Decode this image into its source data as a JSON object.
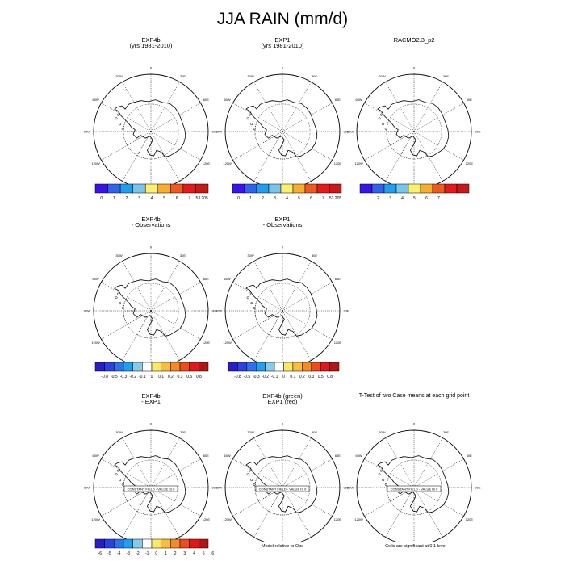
{
  "title": "JJA RAIN (mm/d)",
  "map_labels": {
    "lon_0": "0",
    "lon_30w": "30W",
    "lon_30e": "30E",
    "lon_60w": "60W",
    "lon_60e": "60E",
    "lon_90w": "90W",
    "lon_90e": "90E",
    "lon_120w": "120W",
    "lon_120e": "120E",
    "lon_150w": "150W",
    "lon_150e": "150E",
    "lon_180": "180"
  },
  "panels": [
    {
      "id": "p1",
      "title": [
        "EXP4b",
        "(yrs 1981-2010)"
      ],
      "constant": ""
    },
    {
      "id": "p2",
      "title": [
        "EXP1",
        "(yrs 1981-2010)"
      ],
      "constant": ""
    },
    {
      "id": "p3",
      "title": [
        "",
        "RACMO2.3_p2"
      ],
      "constant": ""
    },
    {
      "id": "p4",
      "title": [
        "EXP4b",
        "- Observations"
      ],
      "constant": ""
    },
    {
      "id": "p5",
      "title": [
        "EXP1",
        "- Observations"
      ],
      "constant": ""
    },
    {
      "id": "p6",
      "title": [
        "EXP4b",
        "- EXP1"
      ],
      "constant": "CONSTANT FIELD - VALUE IS 0"
    },
    {
      "id": "p7",
      "title": [
        "EXP4b (green)",
        "EXP1 (red)"
      ],
      "constant": "CONSTANT FIELD - VALUE IS 0"
    },
    {
      "id": "p8",
      "title": [
        "T-Test of two Case means at each grid point",
        ""
      ],
      "constant": "CONSTANT FIELD - VALUE IS 0"
    }
  ],
  "chart_data": {
    "type": "map",
    "projection": "south polar stereographic",
    "colorbars": [
      {
        "id": "cb1",
        "colors": [
          "#3a12ec",
          "#2f63ee",
          "#1f9ff0",
          "#78c5ea",
          "#fbf16d",
          "#f8ae2c",
          "#f05a1c",
          "#e8191a",
          "#c81818"
        ],
        "labels": [
          "0",
          "1",
          "2",
          "3",
          "4",
          "5",
          "6",
          "7",
          "53.205"
        ]
      },
      {
        "id": "cb2",
        "colors": [
          "#3a12ec",
          "#2f63ee",
          "#1f9ff0",
          "#78c5ea",
          "#fbf16d",
          "#f8ae2c",
          "#f05a1c",
          "#e8191a",
          "#c81818"
        ],
        "labels": [
          "0",
          "1",
          "2",
          "3",
          "4",
          "5",
          "6",
          "7",
          "53.205"
        ]
      },
      {
        "id": "cb3",
        "colors": [
          "#3a12ec",
          "#2f63ee",
          "#1f9ff0",
          "#78c5ea",
          "#fbf16d",
          "#f8ae2c",
          "#f05a1c",
          "#e8191a",
          "#c81818"
        ],
        "labels": [
          "1",
          "2",
          "3",
          "4",
          "5",
          "6",
          "7"
        ]
      },
      {
        "id": "cb4",
        "colors": [
          "#2a1cc8",
          "#2c42e0",
          "#2f72ee",
          "#1ea0f0",
          "#86cbe8",
          "#ffffff",
          "#fbe86a",
          "#f9be3b",
          "#f68a23",
          "#ef4b1c",
          "#e01818",
          "#b01818"
        ],
        "labels": [
          "-0.8",
          "-0.5",
          "-0.3",
          "-0.2",
          "-0.1",
          "0",
          "0.1",
          "0.2",
          "0.3",
          "0.5",
          "0.8"
        ]
      },
      {
        "id": "cb5",
        "colors": [
          "#2a1cc8",
          "#2c42e0",
          "#2f72ee",
          "#1ea0f0",
          "#86cbe8",
          "#ffffff",
          "#fbe86a",
          "#f9be3b",
          "#f68a23",
          "#ef4b1c",
          "#e01818",
          "#b01818"
        ],
        "labels": [
          "-0.8",
          "-0.5",
          "-0.3",
          "-0.2",
          "-0.1",
          "0",
          "0.1",
          "0.2",
          "0.3",
          "0.5",
          "0.8"
        ]
      },
      {
        "id": "cb6",
        "colors": [
          "#2a1cc8",
          "#2c42e0",
          "#2f72ee",
          "#1ea0f0",
          "#86cbe8",
          "#ffffff",
          "#fbe86a",
          "#f9be3b",
          "#f68a23",
          "#ef4b1c",
          "#e01818",
          "#b01818"
        ],
        "labels": [
          "-6",
          "-5",
          "-4",
          "-3",
          "-2",
          "-1",
          "0",
          "1",
          "2",
          "3",
          "4",
          "5",
          "6"
        ]
      }
    ]
  },
  "footnotes": {
    "model_relative": "Model relative to Obs",
    "significance": "Cells are significant at 0.1 level"
  }
}
